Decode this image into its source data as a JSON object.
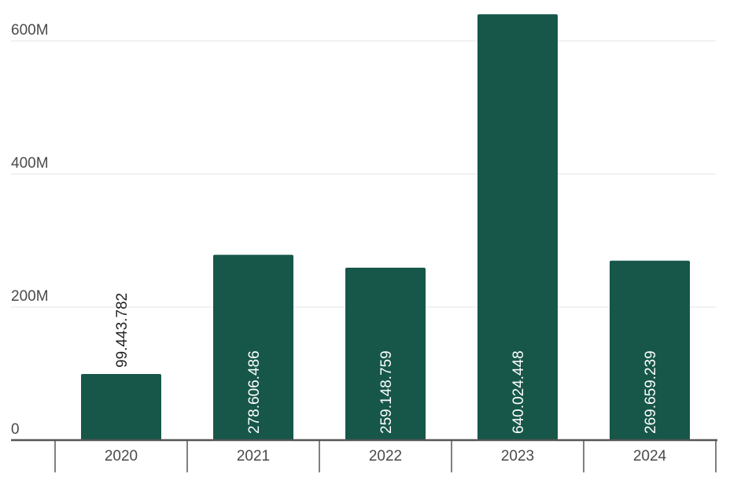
{
  "chart_data": {
    "type": "bar",
    "title": "",
    "xlabel": "",
    "ylabel": "",
    "categories": [
      "2020",
      "2021",
      "2022",
      "2023",
      "2024"
    ],
    "values": [
      99443782,
      278606486,
      259148759,
      640024448,
      269659239
    ],
    "value_labels": [
      "99.443.782",
      "278.606.486",
      "259.148.759",
      "640.024.448",
      "269.659.239"
    ],
    "ylim": [
      0,
      640000000
    ],
    "yticks": [
      0,
      200000000,
      400000000,
      600000000
    ],
    "ytick_labels": [
      "0",
      "200M",
      "400M",
      "600M"
    ],
    "grid": true,
    "legend": "none",
    "colors": {
      "bar": "#17574a",
      "label_inside": "#ffffff",
      "label_outside": "#222222"
    }
  }
}
